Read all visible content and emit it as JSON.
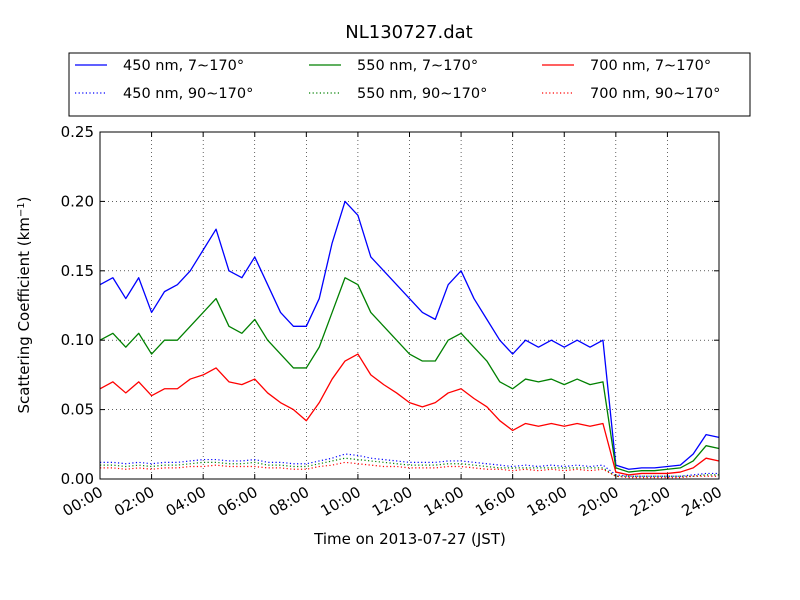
{
  "chart_data": {
    "type": "line",
    "title": "NL130727.dat",
    "xlabel": "Time on 2013-07-27 (JST)",
    "ylabel_main": "Scattering Coefficient (km",
    "ylabel_sup": "−1",
    "ylabel_end": ")",
    "xlim": [
      "00:00",
      "24:00"
    ],
    "ylim": [
      0.0,
      0.25
    ],
    "grid": true,
    "legend_position": "above plot, 3 columns",
    "x_ticks": [
      "00:00",
      "02:00",
      "04:00",
      "06:00",
      "08:00",
      "10:00",
      "12:00",
      "14:00",
      "16:00",
      "18:00",
      "20:00",
      "22:00",
      "24:00"
    ],
    "y_ticks": [
      "0.00",
      "0.05",
      "0.10",
      "0.15",
      "0.20",
      "0.25"
    ],
    "x": [
      "00:00",
      "00:30",
      "01:00",
      "01:30",
      "02:00",
      "02:30",
      "03:00",
      "03:30",
      "04:00",
      "04:30",
      "05:00",
      "05:30",
      "06:00",
      "06:30",
      "07:00",
      "07:30",
      "08:00",
      "08:30",
      "09:00",
      "09:30",
      "10:00",
      "10:30",
      "11:00",
      "11:30",
      "12:00",
      "12:30",
      "13:00",
      "13:30",
      "14:00",
      "14:30",
      "15:00",
      "15:30",
      "16:00",
      "16:30",
      "17:00",
      "17:30",
      "18:00",
      "18:30",
      "19:00",
      "19:30",
      "20:00",
      "20:30",
      "21:00",
      "21:30",
      "22:00",
      "22:30",
      "23:00",
      "23:30",
      "24:00"
    ],
    "series": [
      {
        "name": "450 nm, 7∼170°",
        "color": "#0000ff",
        "style": "solid",
        "values": [
          0.14,
          0.145,
          0.13,
          0.145,
          0.12,
          0.135,
          0.14,
          0.15,
          0.165,
          0.18,
          0.15,
          0.145,
          0.16,
          0.14,
          0.12,
          0.11,
          0.11,
          0.13,
          0.17,
          0.2,
          0.19,
          0.16,
          0.15,
          0.14,
          0.13,
          0.12,
          0.115,
          0.14,
          0.15,
          0.13,
          0.115,
          0.1,
          0.09,
          0.1,
          0.095,
          0.1,
          0.095,
          0.1,
          0.095,
          0.1,
          0.01,
          0.007,
          0.008,
          0.008,
          0.009,
          0.01,
          0.018,
          0.032,
          0.03
        ]
      },
      {
        "name": "550 nm, 7∼170°",
        "color": "#008000",
        "style": "solid",
        "values": [
          0.1,
          0.105,
          0.095,
          0.105,
          0.09,
          0.1,
          0.1,
          0.11,
          0.12,
          0.13,
          0.11,
          0.105,
          0.115,
          0.1,
          0.09,
          0.08,
          0.08,
          0.095,
          0.12,
          0.145,
          0.14,
          0.12,
          0.11,
          0.1,
          0.09,
          0.085,
          0.085,
          0.1,
          0.105,
          0.095,
          0.085,
          0.07,
          0.065,
          0.072,
          0.07,
          0.072,
          0.068,
          0.072,
          0.068,
          0.07,
          0.008,
          0.005,
          0.006,
          0.006,
          0.007,
          0.008,
          0.013,
          0.024,
          0.022
        ]
      },
      {
        "name": "700 nm, 7∼170°",
        "color": "#ff0000",
        "style": "solid",
        "values": [
          0.065,
          0.07,
          0.062,
          0.07,
          0.06,
          0.065,
          0.065,
          0.072,
          0.075,
          0.08,
          0.07,
          0.068,
          0.072,
          0.062,
          0.055,
          0.05,
          0.042,
          0.055,
          0.072,
          0.085,
          0.09,
          0.075,
          0.068,
          0.062,
          0.055,
          0.052,
          0.055,
          0.062,
          0.065,
          0.058,
          0.052,
          0.042,
          0.035,
          0.04,
          0.038,
          0.04,
          0.038,
          0.04,
          0.038,
          0.04,
          0.005,
          0.003,
          0.004,
          0.004,
          0.004,
          0.005,
          0.008,
          0.015,
          0.013
        ]
      },
      {
        "name": "450 nm, 90∼170°",
        "color": "#0000ff",
        "style": "dotted",
        "values": [
          0.012,
          0.012,
          0.011,
          0.012,
          0.011,
          0.012,
          0.012,
          0.013,
          0.014,
          0.014,
          0.013,
          0.013,
          0.014,
          0.012,
          0.012,
          0.011,
          0.011,
          0.013,
          0.015,
          0.018,
          0.017,
          0.015,
          0.014,
          0.013,
          0.012,
          0.012,
          0.012,
          0.013,
          0.013,
          0.012,
          0.011,
          0.01,
          0.009,
          0.01,
          0.009,
          0.01,
          0.009,
          0.01,
          0.009,
          0.01,
          0.003,
          0.002,
          0.002,
          0.002,
          0.002,
          0.002,
          0.003,
          0.004,
          0.004
        ]
      },
      {
        "name": "550 nm, 90∼170°",
        "color": "#008000",
        "style": "dotted",
        "values": [
          0.01,
          0.01,
          0.009,
          0.01,
          0.009,
          0.01,
          0.01,
          0.011,
          0.012,
          0.012,
          0.011,
          0.011,
          0.012,
          0.01,
          0.01,
          0.009,
          0.009,
          0.011,
          0.013,
          0.015,
          0.014,
          0.013,
          0.012,
          0.011,
          0.01,
          0.01,
          0.01,
          0.011,
          0.011,
          0.01,
          0.009,
          0.008,
          0.008,
          0.008,
          0.008,
          0.008,
          0.008,
          0.008,
          0.008,
          0.008,
          0.002,
          0.002,
          0.002,
          0.002,
          0.002,
          0.002,
          0.002,
          0.003,
          0.003
        ]
      },
      {
        "name": "700 nm, 90∼170°",
        "color": "#ff0000",
        "style": "dotted",
        "values": [
          0.008,
          0.008,
          0.007,
          0.008,
          0.007,
          0.008,
          0.008,
          0.009,
          0.009,
          0.01,
          0.009,
          0.009,
          0.009,
          0.008,
          0.008,
          0.007,
          0.007,
          0.009,
          0.01,
          0.012,
          0.011,
          0.01,
          0.009,
          0.009,
          0.008,
          0.008,
          0.008,
          0.009,
          0.009,
          0.008,
          0.007,
          0.007,
          0.006,
          0.007,
          0.006,
          0.007,
          0.006,
          0.007,
          0.006,
          0.007,
          0.002,
          0.001,
          0.001,
          0.001,
          0.001,
          0.001,
          0.002,
          0.002,
          0.002
        ]
      }
    ]
  }
}
